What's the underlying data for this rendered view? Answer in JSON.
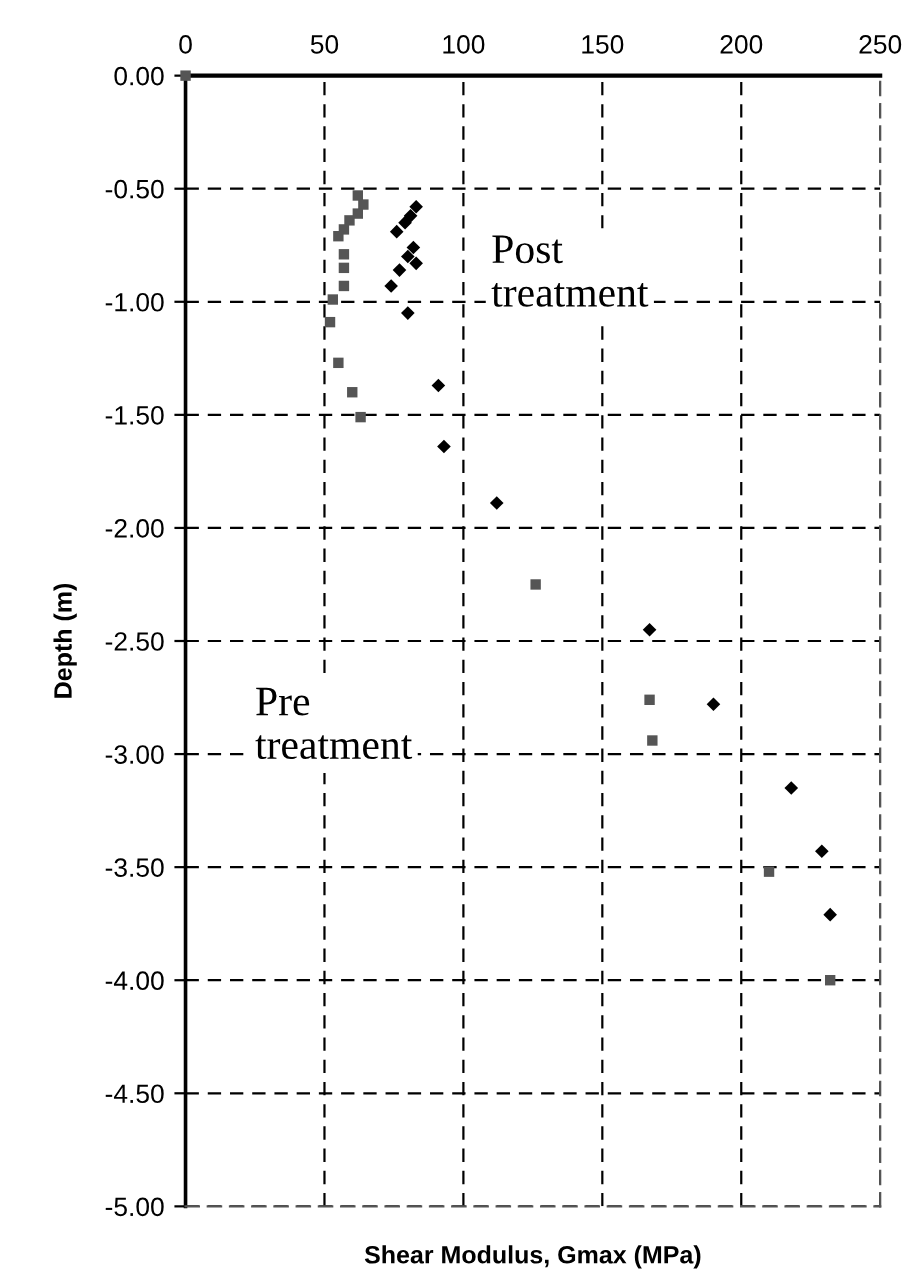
{
  "chart_data": {
    "type": "scatter",
    "xlabel": "Shear Modulus, Gmax (MPa)",
    "ylabel": "Depth (m)",
    "xlim": [
      0,
      250
    ],
    "xticks": [
      0,
      50,
      100,
      150,
      200,
      250
    ],
    "ylim": [
      -5,
      0
    ],
    "yticks": [
      {
        "value": 0,
        "label": "0.00"
      },
      {
        "value": -0.5,
        "label": "-0.50"
      },
      {
        "value": -1,
        "label": "-1.00"
      },
      {
        "value": -1.5,
        "label": "-1.50"
      },
      {
        "value": -2,
        "label": "-2.00"
      },
      {
        "value": -2.5,
        "label": "-2.50"
      },
      {
        "value": -3,
        "label": "-3.00"
      },
      {
        "value": -3.5,
        "label": "-3.50"
      },
      {
        "value": -4,
        "label": "-4.00"
      },
      {
        "value": -4.5,
        "label": "-4.50"
      },
      {
        "value": -5,
        "label": "-5.00"
      }
    ],
    "grid": true,
    "line_style": "dashed",
    "series": [
      {
        "color": "#555555",
        "marker": "square",
        "x": [
          0,
          62,
          64,
          62,
          59,
          57,
          55,
          57,
          57,
          57,
          53,
          52,
          55,
          60,
          63,
          126,
          167,
          168,
          210,
          232
        ],
        "values": [
          0,
          -0.53,
          -0.57,
          -0.61,
          -0.64,
          -0.68,
          -0.71,
          -0.79,
          -0.85,
          -0.93,
          -0.99,
          -1.09,
          -1.27,
          -1.4,
          -1.51,
          -2.25,
          -2.76,
          -2.94,
          -3.52,
          -4.0
        ]
      },
      {
        "color": "#000000",
        "marker": "diamond",
        "x": [
          83,
          81,
          79,
          76,
          82,
          80,
          83,
          77,
          74,
          80,
          91,
          93,
          112,
          167,
          190,
          218,
          229,
          232
        ],
        "values": [
          -0.58,
          -0.62,
          -0.65,
          -0.69,
          -0.76,
          -0.8,
          -0.83,
          -0.86,
          -0.93,
          -1.05,
          -1.37,
          -1.64,
          -1.89,
          -2.45,
          -2.78,
          -3.15,
          -3.43,
          -3.71
        ]
      }
    ],
    "annotations": [
      "Post\ntreatment",
      "Pre\ntreatment"
    ]
  }
}
